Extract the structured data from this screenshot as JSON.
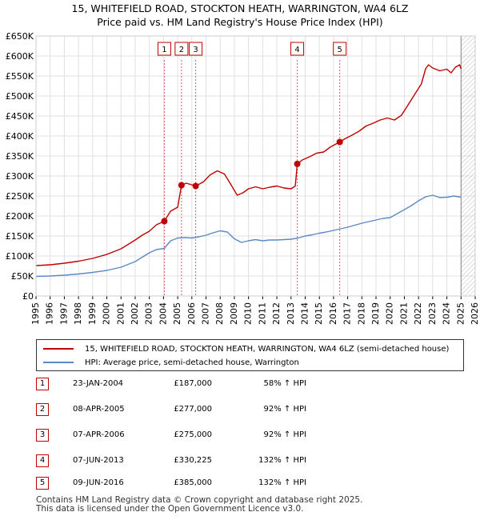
{
  "title": "15, WHITEFIELD ROAD, STOCKTON HEATH, WARRINGTON, WA4 6LZ",
  "subtitle": "Price paid vs. HM Land Registry's House Price Index (HPI)",
  "colors": {
    "property": "#c00000",
    "hpi": "#5b8ac6",
    "sale_marker_line": "#d06060",
    "future_hatch": "#bbbbbb",
    "grid": "#e0e0e0"
  },
  "chart_data": {
    "type": "line",
    "xlim": [
      1995,
      2026
    ],
    "ylim": [
      0,
      650000
    ],
    "x_ticks": [
      "1995",
      "1996",
      "1997",
      "1998",
      "1999",
      "2000",
      "2001",
      "2002",
      "2003",
      "2004",
      "2005",
      "2006",
      "2007",
      "2008",
      "2009",
      "2010",
      "2011",
      "2012",
      "2013",
      "2014",
      "2015",
      "2016",
      "2017",
      "2018",
      "2019",
      "2020",
      "2021",
      "2022",
      "2023",
      "2024",
      "2025",
      "2026"
    ],
    "y_ticks": [
      {
        "value": 0,
        "label": "£0"
      },
      {
        "value": 50000,
        "label": "£50K"
      },
      {
        "value": 100000,
        "label": "£100K"
      },
      {
        "value": 150000,
        "label": "£150K"
      },
      {
        "value": 200000,
        "label": "£200K"
      },
      {
        "value": 250000,
        "label": "£250K"
      },
      {
        "value": 300000,
        "label": "£300K"
      },
      {
        "value": 350000,
        "label": "£350K"
      },
      {
        "value": 400000,
        "label": "£400K"
      },
      {
        "value": 450000,
        "label": "£450K"
      },
      {
        "value": 500000,
        "label": "£500K"
      },
      {
        "value": 550000,
        "label": "£550K"
      },
      {
        "value": 600000,
        "label": "£600K"
      },
      {
        "value": 650000,
        "label": "£650K"
      }
    ],
    "grid": true,
    "series": [
      {
        "name": "15, WHITEFIELD ROAD, STOCKTON HEATH, WARRINGTON, WA4 6LZ (semi-detached house)",
        "x": [
          1995.0,
          1996.0,
          1997.0,
          1998.0,
          1999.0,
          2000.0,
          2001.0,
          2002.0,
          2002.5,
          2003.0,
          2003.5,
          2004.06,
          2004.5,
          2005.0,
          2005.27,
          2005.6,
          2006.0,
          2006.27,
          2006.8,
          2007.3,
          2007.8,
          2008.3,
          2008.7,
          2009.2,
          2009.6,
          2010.0,
          2010.5,
          2011.0,
          2011.5,
          2012.0,
          2012.5,
          2013.0,
          2013.3,
          2013.44,
          2013.8,
          2014.3,
          2014.8,
          2015.3,
          2015.8,
          2016.44,
          2016.8,
          2017.3,
          2017.8,
          2018.3,
          2018.8,
          2019.3,
          2019.8,
          2020.3,
          2020.8,
          2021.3,
          2021.8,
          2022.2,
          2022.5,
          2022.7,
          2023.0,
          2023.5,
          2024.0,
          2024.3,
          2024.6,
          2024.9,
          2025.0
        ],
        "y": [
          76000,
          78000,
          82000,
          87000,
          94000,
          104000,
          118000,
          140000,
          152000,
          162000,
          178000,
          187000,
          212000,
          222000,
          277000,
          282000,
          278000,
          275000,
          285000,
          303000,
          313000,
          305000,
          282000,
          252000,
          258000,
          268000,
          273000,
          268000,
          272000,
          275000,
          270000,
          268000,
          275000,
          330225,
          340000,
          348000,
          357000,
          360000,
          373000,
          385000,
          393000,
          402000,
          412000,
          425000,
          432000,
          440000,
          445000,
          440000,
          452000,
          480000,
          508000,
          530000,
          568000,
          578000,
          570000,
          563000,
          567000,
          558000,
          572000,
          578000,
          568000
        ]
      },
      {
        "name": "HPI: Average price, semi-detached house, Warrington",
        "x": [
          1995.0,
          1996.0,
          1997.0,
          1998.0,
          1999.0,
          2000.0,
          2001.0,
          2002.0,
          2002.5,
          2003.0,
          2003.5,
          2004.06,
          2004.5,
          2005.0,
          2005.5,
          2006.0,
          2006.5,
          2007.0,
          2007.5,
          2008.0,
          2008.5,
          2009.0,
          2009.5,
          2010.0,
          2010.5,
          2011.0,
          2011.5,
          2012.0,
          2012.5,
          2013.0,
          2013.5,
          2014.0,
          2014.5,
          2015.0,
          2015.5,
          2016.0,
          2016.5,
          2017.0,
          2017.5,
          2018.0,
          2018.5,
          2019.0,
          2019.5,
          2020.0,
          2020.5,
          2021.0,
          2021.5,
          2022.0,
          2022.5,
          2023.0,
          2023.5,
          2024.0,
          2024.5,
          2025.0
        ],
        "y": [
          49000,
          50000,
          52000,
          55000,
          59000,
          64000,
          72000,
          86000,
          97000,
          108000,
          116000,
          119000,
          138000,
          145000,
          146000,
          145000,
          148000,
          152000,
          158000,
          163000,
          160000,
          143000,
          134000,
          138000,
          141000,
          138000,
          140000,
          140000,
          141000,
          142000,
          145000,
          150000,
          153000,
          157000,
          160000,
          164000,
          168000,
          172000,
          177000,
          182000,
          186000,
          190000,
          194000,
          196000,
          206000,
          216000,
          226000,
          238000,
          248000,
          252000,
          246000,
          247000,
          250000,
          247000
        ]
      }
    ],
    "sales": [
      {
        "num": "1",
        "x": 2004.06,
        "y": 187000
      },
      {
        "num": "2",
        "x": 2005.27,
        "y": 277000
      },
      {
        "num": "3",
        "x": 2006.27,
        "y": 275000
      },
      {
        "num": "4",
        "x": 2013.44,
        "y": 330225
      },
      {
        "num": "5",
        "x": 2016.44,
        "y": 385000
      }
    ],
    "future_from": 2025.0
  },
  "legend": {
    "property": "15, WHITEFIELD ROAD, STOCKTON HEATH, WARRINGTON, WA4 6LZ (semi-detached house)",
    "hpi": "HPI: Average price, semi-detached house, Warrington"
  },
  "sales_table": [
    {
      "num": "1",
      "date": "23-JAN-2004",
      "price": "£187,000",
      "hpi": "58% ↑ HPI"
    },
    {
      "num": "2",
      "date": "08-APR-2005",
      "price": "£277,000",
      "hpi": "92% ↑ HPI"
    },
    {
      "num": "3",
      "date": "07-APR-2006",
      "price": "£275,000",
      "hpi": "92% ↑ HPI"
    },
    {
      "num": "4",
      "date": "07-JUN-2013",
      "price": "£330,225",
      "hpi": "132% ↑ HPI"
    },
    {
      "num": "5",
      "date": "09-JUN-2016",
      "price": "£385,000",
      "hpi": "132% ↑ HPI"
    }
  ],
  "footer": {
    "line1": "Contains HM Land Registry data © Crown copyright and database right 2025.",
    "line2": "This data is licensed under the Open Government Licence v3.0."
  }
}
